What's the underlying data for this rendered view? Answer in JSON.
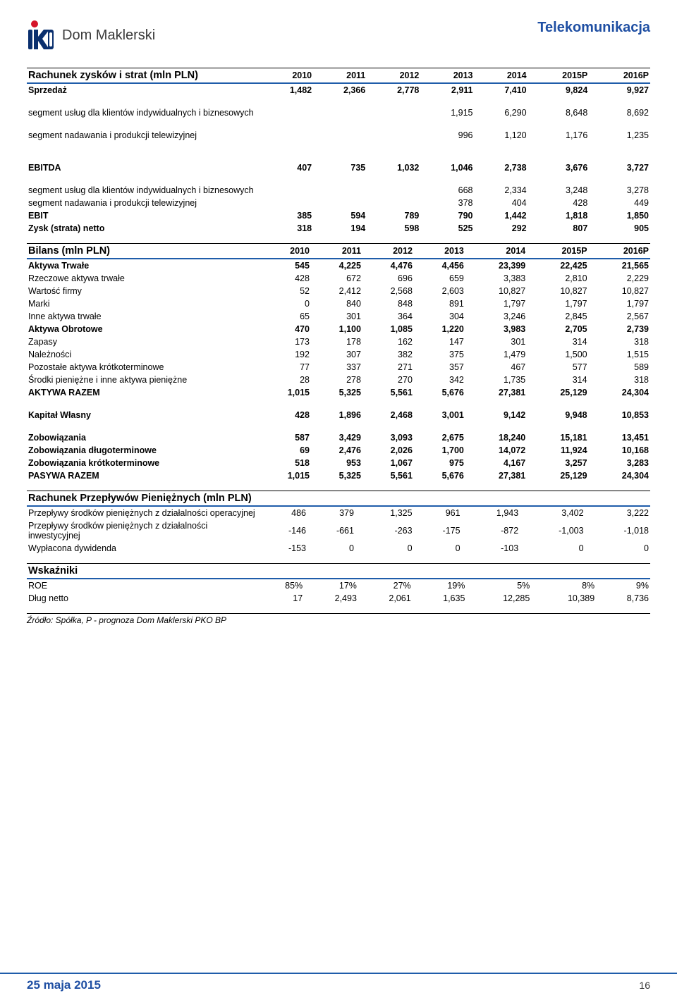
{
  "header": {
    "brand": "Dom Maklerski",
    "doc_title": "Telekomunikacja"
  },
  "colors": {
    "accent_blue": "#1f5daa",
    "brand_blue": "#1f4fa3",
    "logo_red": "#d5142a",
    "logo_navy": "#0a2f6e"
  },
  "footer": {
    "date": "25 maja 2015",
    "page": "16"
  },
  "source_note": "Źródło: Spółka, P - prognoza Dom Maklerski PKO BP",
  "col_headers": [
    "2010",
    "2011",
    "2012",
    "2013",
    "2014",
    "2015P",
    "2016P"
  ],
  "income": {
    "title": "Rachunek zysków i strat (mln PLN)",
    "rows": [
      {
        "label": "Sprzedaż",
        "vals": [
          "1,482",
          "2,366",
          "2,778",
          "2,911",
          "7,410",
          "9,824",
          "9,927"
        ],
        "bold": true
      },
      {
        "spacer": true
      },
      {
        "label": "segment usług dla klientów indywidualnych i biznesowych",
        "vals": [
          "",
          "",
          "",
          "1,915",
          "6,290",
          "8,648",
          "8,692"
        ]
      },
      {
        "spacer": true
      },
      {
        "label": "segment nadawania i produkcji telewizyjnej",
        "vals": [
          "",
          "",
          "",
          "996",
          "1,120",
          "1,176",
          "1,235"
        ]
      },
      {
        "spacer": true
      },
      {
        "spacer": true
      },
      {
        "label": "EBITDA",
        "vals": [
          "407",
          "735",
          "1,032",
          "1,046",
          "2,738",
          "3,676",
          "3,727"
        ],
        "bold": true
      },
      {
        "spacer": true
      },
      {
        "label": "segment usług dla klientów indywidualnych i biznesowych",
        "vals": [
          "",
          "",
          "",
          "668",
          "2,334",
          "3,248",
          "3,278"
        ]
      },
      {
        "label": "segment nadawania i produkcji telewizyjnej",
        "vals": [
          "",
          "",
          "",
          "378",
          "404",
          "428",
          "449"
        ]
      },
      {
        "label": "EBIT",
        "vals": [
          "385",
          "594",
          "789",
          "790",
          "1,442",
          "1,818",
          "1,850"
        ],
        "bold": true
      },
      {
        "label": "Zysk (strata) netto",
        "vals": [
          "318",
          "194",
          "598",
          "525",
          "292",
          "807",
          "905"
        ],
        "bold": true
      }
    ]
  },
  "balance": {
    "title": "Bilans (mln PLN)",
    "rows": [
      {
        "label": "Aktywa Trwałe",
        "vals": [
          "545",
          "4,225",
          "4,476",
          "4,456",
          "23,399",
          "22,425",
          "21,565"
        ],
        "bold": true
      },
      {
        "label": "Rzeczowe aktywa trwałe",
        "vals": [
          "428",
          "672",
          "696",
          "659",
          "3,383",
          "2,810",
          "2,229"
        ]
      },
      {
        "label": "Wartość firmy",
        "vals": [
          "52",
          "2,412",
          "2,568",
          "2,603",
          "10,827",
          "10,827",
          "10,827"
        ]
      },
      {
        "label": "Marki",
        "vals": [
          "0",
          "840",
          "848",
          "891",
          "1,797",
          "1,797",
          "1,797"
        ]
      },
      {
        "label": "Inne aktywa trwałe",
        "vals": [
          "65",
          "301",
          "364",
          "304",
          "3,246",
          "2,845",
          "2,567"
        ]
      },
      {
        "label": "Aktywa Obrotowe",
        "vals": [
          "470",
          "1,100",
          "1,085",
          "1,220",
          "3,983",
          "2,705",
          "2,739"
        ],
        "bold": true
      },
      {
        "label": "Zapasy",
        "vals": [
          "173",
          "178",
          "162",
          "147",
          "301",
          "314",
          "318"
        ]
      },
      {
        "label": "Należności",
        "vals": [
          "192",
          "307",
          "382",
          "375",
          "1,479",
          "1,500",
          "1,515"
        ]
      },
      {
        "label": "Pozostałe aktywa krótkoterminowe",
        "vals": [
          "77",
          "337",
          "271",
          "357",
          "467",
          "577",
          "589"
        ]
      },
      {
        "label": "Środki pieniężne i inne aktywa pieniężne",
        "vals": [
          "28",
          "278",
          "270",
          "342",
          "1,735",
          "314",
          "318"
        ]
      },
      {
        "label": "AKTYWA RAZEM",
        "vals": [
          "1,015",
          "5,325",
          "5,561",
          "5,676",
          "27,381",
          "25,129",
          "24,304"
        ],
        "bold": true
      },
      {
        "spacer": true
      },
      {
        "label": "Kapitał Własny",
        "vals": [
          "428",
          "1,896",
          "2,468",
          "3,001",
          "9,142",
          "9,948",
          "10,853"
        ],
        "bold": true
      },
      {
        "spacer": true
      },
      {
        "label": "Zobowiązania",
        "vals": [
          "587",
          "3,429",
          "3,093",
          "2,675",
          "18,240",
          "15,181",
          "13,451"
        ],
        "bold": true
      },
      {
        "label": "Zobowiązania długoterminowe",
        "vals": [
          "69",
          "2,476",
          "2,026",
          "1,700",
          "14,072",
          "11,924",
          "10,168"
        ],
        "bold": true
      },
      {
        "label": "Zobowiązania krótkoterminowe",
        "vals": [
          "518",
          "953",
          "1,067",
          "975",
          "4,167",
          "3,257",
          "3,283"
        ],
        "bold": true
      },
      {
        "label": "PASYWA RAZEM",
        "vals": [
          "1,015",
          "5,325",
          "5,561",
          "5,676",
          "27,381",
          "25,129",
          "24,304"
        ],
        "bold": true
      }
    ]
  },
  "cashflow": {
    "title": "Rachunek Przepływów Pieniężnych (mln PLN)",
    "rows": [
      {
        "label": "Przepływy środków pieniężnych z działalności operacyjnej",
        "vals": [
          "486",
          "379",
          "1,325",
          "961",
          "1,943",
          "3,402",
          "3,222"
        ]
      },
      {
        "label": "Przepływy środków pieniężnych z działalności inwestycyjnej",
        "vals": [
          "-146",
          "-661",
          "-263",
          "-175",
          "-872",
          "-1,003",
          "-1,018"
        ]
      },
      {
        "label": "Wypłacona dywidenda",
        "vals": [
          "-153",
          "0",
          "0",
          "0",
          "-103",
          "0",
          "0"
        ]
      }
    ]
  },
  "ratios": {
    "title": "Wskaźniki",
    "rows": [
      {
        "label": "ROE",
        "vals": [
          "85%",
          "17%",
          "27%",
          "19%",
          "5%",
          "8%",
          "9%"
        ]
      },
      {
        "label": "Dług netto",
        "vals": [
          "17",
          "2,493",
          "2,061",
          "1,635",
          "12,285",
          "10,389",
          "8,736"
        ]
      }
    ]
  }
}
